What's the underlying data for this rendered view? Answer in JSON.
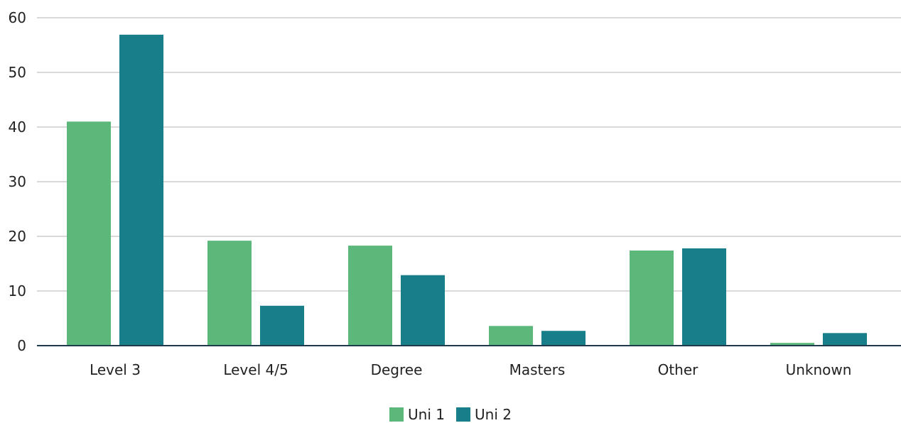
{
  "chart_data": {
    "type": "bar",
    "title": "",
    "xlabel": "",
    "ylabel": "",
    "categories": [
      "Level 3",
      "Level 4/5",
      "Degree",
      "Masters",
      "Other",
      "Unknown"
    ],
    "series": [
      {
        "name": "Uni 1",
        "color": "#5cb87a",
        "values": [
          41,
          19.2,
          18.3,
          3.6,
          17.4,
          0.5
        ]
      },
      {
        "name": "Uni 2",
        "color": "#187f8a",
        "values": [
          56.9,
          7.3,
          12.9,
          2.7,
          17.8,
          2.3
        ]
      }
    ],
    "ylim": [
      0,
      60
    ],
    "yticks": [
      0,
      10,
      20,
      30,
      40,
      50,
      60
    ],
    "grid": true,
    "legend_position": "bottom-center"
  }
}
